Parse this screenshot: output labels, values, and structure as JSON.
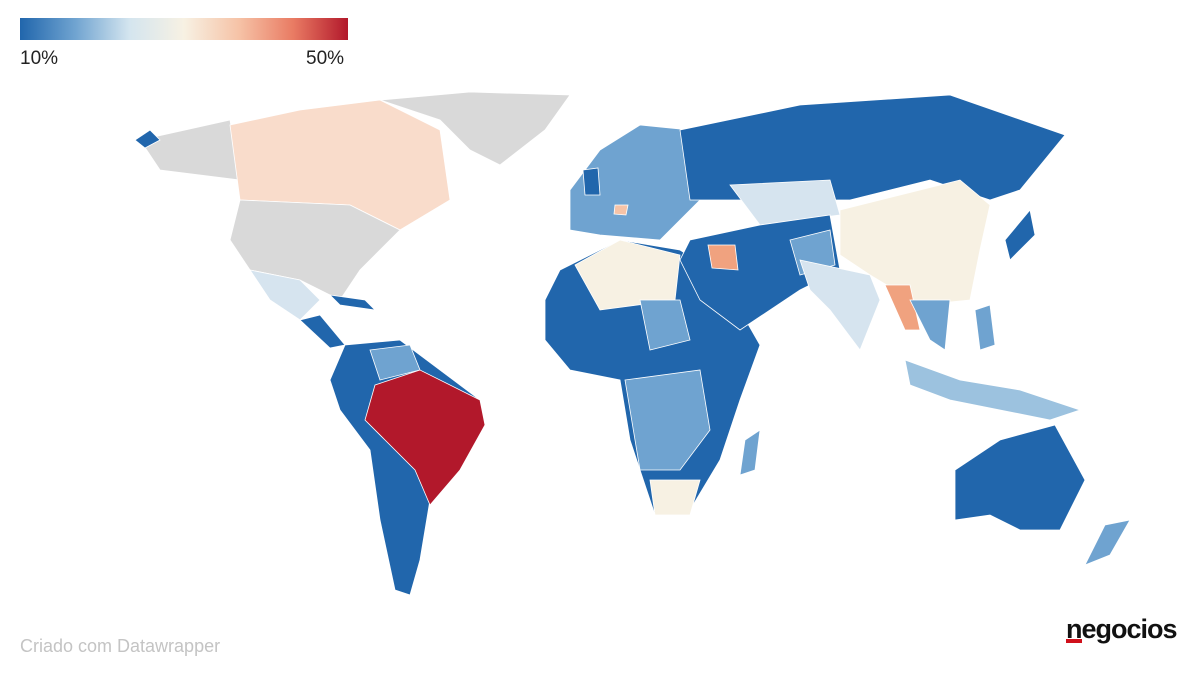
{
  "legend": {
    "labels": [
      "10%",
      "50%"
    ],
    "colors": [
      "#2166ac",
      "#6fa3d0",
      "#d4e5ef",
      "#f7f1e3",
      "#f6c3a7",
      "#e97b63",
      "#b2182b"
    ]
  },
  "footer": "Criado com Datawrapper",
  "logo": "negocios"
}
